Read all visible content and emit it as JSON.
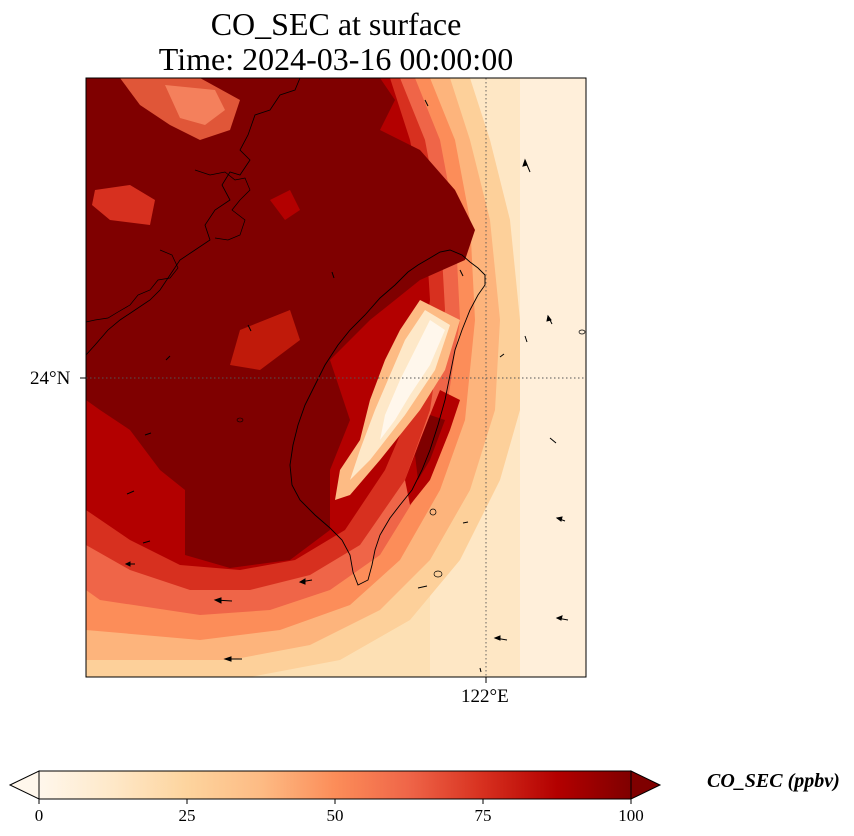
{
  "title": {
    "line1": "CO_SEC at surface",
    "line2": "Time: 2024-03-16 00:00:00"
  },
  "axes": {
    "latitude_tick": "24°N",
    "longitude_tick": "122°E"
  },
  "colorbar": {
    "label": "CO_SEC (ppbv)",
    "colormap": "OrRd",
    "range": [
      0,
      100
    ],
    "extend": "both",
    "ticks": [
      "0",
      "25",
      "50",
      "75",
      "100"
    ],
    "colors": [
      "#fff7ec",
      "#fee8c8",
      "#fdd49e",
      "#fdbb84",
      "#fc8d59",
      "#ef6548",
      "#d7301f",
      "#b30000",
      "#7f0000"
    ]
  },
  "map": {
    "region": "Taiwan and Taiwan Strait",
    "field": "CO_SEC",
    "gridlines": "dotted",
    "wind_vectors": "black arrows"
  }
}
